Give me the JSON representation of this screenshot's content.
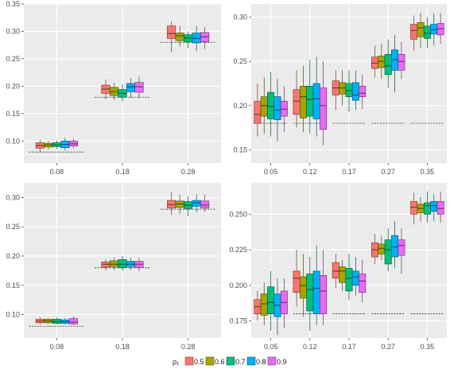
{
  "legend": {
    "title": "ρ₁",
    "position": "bottom",
    "entries": [
      {
        "label": "0.5",
        "color": "#F8766D"
      },
      {
        "label": "0.6",
        "color": "#A3A500"
      },
      {
        "label": "0.7",
        "color": "#00BF7D"
      },
      {
        "label": "0.8",
        "color": "#00B0F6"
      },
      {
        "label": "0.9",
        "color": "#E76BF3"
      }
    ]
  },
  "chart_data": [
    {
      "type": "boxplot",
      "panel": "top-left",
      "categories": [
        "0.08",
        "0.18",
        "0.28"
      ],
      "ylim": [
        0.06,
        0.35
      ],
      "yticks": [
        "0.10",
        "0.15",
        "0.20",
        "0.25",
        "0.30",
        "0.35"
      ],
      "reference": [
        0.08,
        0.18,
        0.28
      ],
      "groups": [
        [
          [
            0.08,
            0.087,
            0.092,
            0.097,
            0.102
          ],
          [
            0.085,
            0.089,
            0.093,
            0.096,
            0.1
          ],
          [
            0.086,
            0.09,
            0.093,
            0.097,
            0.101
          ],
          [
            0.083,
            0.088,
            0.094,
            0.1,
            0.106
          ],
          [
            0.087,
            0.091,
            0.095,
            0.1,
            0.104
          ]
        ],
        [
          [
            0.176,
            0.187,
            0.195,
            0.202,
            0.212
          ],
          [
            0.175,
            0.183,
            0.19,
            0.198,
            0.206
          ],
          [
            0.172,
            0.18,
            0.187,
            0.194,
            0.204
          ],
          [
            0.18,
            0.19,
            0.199,
            0.205,
            0.215
          ],
          [
            0.178,
            0.189,
            0.199,
            0.207,
            0.218
          ]
        ],
        [
          [
            0.262,
            0.287,
            0.296,
            0.31,
            0.318
          ],
          [
            0.272,
            0.283,
            0.292,
            0.297,
            0.31
          ],
          [
            0.27,
            0.281,
            0.288,
            0.294,
            0.3
          ],
          [
            0.264,
            0.279,
            0.287,
            0.297,
            0.31
          ],
          [
            0.268,
            0.281,
            0.29,
            0.298,
            0.308
          ]
        ]
      ]
    },
    {
      "type": "boxplot",
      "panel": "top-right",
      "categories": [
        "0.05",
        "0.12",
        "0.17",
        "0.27",
        "0.35"
      ],
      "ylim": [
        0.135,
        0.315
      ],
      "yticks": [
        "0.15",
        "0.20",
        "0.25",
        "0.30"
      ],
      "reference": [
        0.18,
        0.18,
        0.18,
        0.18,
        0.18
      ],
      "groups": [
        [
          [
            0.165,
            0.18,
            0.19,
            0.205,
            0.225
          ],
          [
            0.168,
            0.188,
            0.2,
            0.21,
            0.232
          ],
          [
            0.165,
            0.185,
            0.199,
            0.215,
            0.238
          ],
          [
            0.16,
            0.184,
            0.195,
            0.21,
            0.23
          ],
          [
            0.17,
            0.188,
            0.196,
            0.205,
            0.222
          ]
        ],
        [
          [
            0.175,
            0.19,
            0.205,
            0.218,
            0.24
          ],
          [
            0.17,
            0.186,
            0.21,
            0.222,
            0.245
          ],
          [
            0.168,
            0.188,
            0.207,
            0.222,
            0.252
          ],
          [
            0.165,
            0.185,
            0.208,
            0.225,
            0.255
          ],
          [
            0.155,
            0.173,
            0.2,
            0.22,
            0.25
          ]
        ],
        [
          [
            0.195,
            0.212,
            0.22,
            0.228,
            0.24
          ],
          [
            0.2,
            0.213,
            0.22,
            0.226,
            0.24
          ],
          [
            0.193,
            0.21,
            0.217,
            0.225,
            0.24
          ],
          [
            0.195,
            0.206,
            0.212,
            0.226,
            0.24
          ],
          [
            0.196,
            0.21,
            0.214,
            0.222,
            0.235
          ]
        ],
        [
          [
            0.232,
            0.242,
            0.248,
            0.255,
            0.268
          ],
          [
            0.23,
            0.243,
            0.25,
            0.256,
            0.27
          ],
          [
            0.22,
            0.235,
            0.245,
            0.258,
            0.275
          ],
          [
            0.215,
            0.24,
            0.252,
            0.263,
            0.28
          ],
          [
            0.23,
            0.24,
            0.25,
            0.258,
            0.272
          ]
        ],
        [
          [
            0.262,
            0.275,
            0.285,
            0.292,
            0.302
          ],
          [
            0.265,
            0.278,
            0.288,
            0.294,
            0.305
          ],
          [
            0.265,
            0.276,
            0.282,
            0.29,
            0.3
          ],
          [
            0.268,
            0.281,
            0.286,
            0.292,
            0.304
          ],
          [
            0.27,
            0.28,
            0.287,
            0.293,
            0.305
          ]
        ]
      ]
    },
    {
      "type": "boxplot",
      "panel": "bottom-left",
      "categories": [
        "0.08",
        "0.18",
        "0.28"
      ],
      "ylim": [
        0.06,
        0.325
      ],
      "yticks": [
        "0.10",
        "0.15",
        "0.20",
        "0.25",
        "0.30"
      ],
      "reference": [
        0.08,
        0.18,
        0.28
      ],
      "groups": [
        [
          [
            0.083,
            0.086,
            0.089,
            0.092,
            0.095
          ],
          [
            0.084,
            0.086,
            0.089,
            0.092,
            0.094
          ],
          [
            0.083,
            0.085,
            0.088,
            0.092,
            0.095
          ],
          [
            0.083,
            0.085,
            0.088,
            0.091,
            0.094
          ],
          [
            0.082,
            0.084,
            0.087,
            0.093,
            0.097
          ]
        ],
        [
          [
            0.175,
            0.181,
            0.186,
            0.19,
            0.194
          ],
          [
            0.176,
            0.182,
            0.186,
            0.192,
            0.198
          ],
          [
            0.175,
            0.18,
            0.186,
            0.194,
            0.2
          ],
          [
            0.176,
            0.182,
            0.186,
            0.191,
            0.197
          ],
          [
            0.174,
            0.18,
            0.186,
            0.191,
            0.197
          ]
        ],
        [
          [
            0.27,
            0.282,
            0.288,
            0.295,
            0.31
          ],
          [
            0.272,
            0.283,
            0.289,
            0.294,
            0.305
          ],
          [
            0.268,
            0.281,
            0.287,
            0.293,
            0.302
          ],
          [
            0.275,
            0.285,
            0.291,
            0.295,
            0.305
          ],
          [
            0.275,
            0.282,
            0.287,
            0.294,
            0.305
          ]
        ]
      ]
    },
    {
      "type": "boxplot",
      "panel": "bottom-right",
      "categories": [
        "0.05",
        "0.12",
        "0.17",
        "0.27",
        "0.35"
      ],
      "ylim": [
        0.163,
        0.272
      ],
      "yticks": [
        "0.175",
        "0.200",
        "0.225",
        "0.250"
      ],
      "reference": [
        0.18,
        0.18,
        0.18,
        0.18,
        0.18
      ],
      "groups": [
        [
          [
            0.175,
            0.18,
            0.185,
            0.19,
            0.196
          ],
          [
            0.172,
            0.179,
            0.187,
            0.194,
            0.202
          ],
          [
            0.168,
            0.18,
            0.188,
            0.199,
            0.21
          ],
          [
            0.165,
            0.178,
            0.186,
            0.194,
            0.205
          ],
          [
            0.17,
            0.18,
            0.188,
            0.196,
            0.205
          ]
        ],
        [
          [
            0.185,
            0.195,
            0.205,
            0.21,
            0.225
          ],
          [
            0.178,
            0.191,
            0.2,
            0.206,
            0.222
          ],
          [
            0.168,
            0.182,
            0.197,
            0.208,
            0.22
          ],
          [
            0.172,
            0.18,
            0.198,
            0.21,
            0.228
          ],
          [
            0.172,
            0.18,
            0.196,
            0.207,
            0.225
          ]
        ],
        [
          [
            0.198,
            0.205,
            0.21,
            0.216,
            0.222
          ],
          [
            0.196,
            0.202,
            0.21,
            0.213,
            0.218
          ],
          [
            0.19,
            0.196,
            0.205,
            0.212,
            0.222
          ],
          [
            0.193,
            0.2,
            0.206,
            0.21,
            0.22
          ],
          [
            0.188,
            0.195,
            0.203,
            0.208,
            0.218
          ]
        ],
        [
          [
            0.215,
            0.22,
            0.225,
            0.23,
            0.236
          ],
          [
            0.218,
            0.222,
            0.226,
            0.229,
            0.235
          ],
          [
            0.21,
            0.215,
            0.225,
            0.232,
            0.24
          ],
          [
            0.212,
            0.22,
            0.227,
            0.235,
            0.245
          ],
          [
            0.208,
            0.221,
            0.228,
            0.232,
            0.24
          ]
        ],
        [
          [
            0.243,
            0.25,
            0.255,
            0.259,
            0.265
          ],
          [
            0.245,
            0.251,
            0.254,
            0.257,
            0.262
          ],
          [
            0.244,
            0.25,
            0.256,
            0.258,
            0.266
          ],
          [
            0.245,
            0.252,
            0.256,
            0.259,
            0.264
          ],
          [
            0.244,
            0.25,
            0.254,
            0.259,
            0.266
          ]
        ]
      ]
    }
  ]
}
